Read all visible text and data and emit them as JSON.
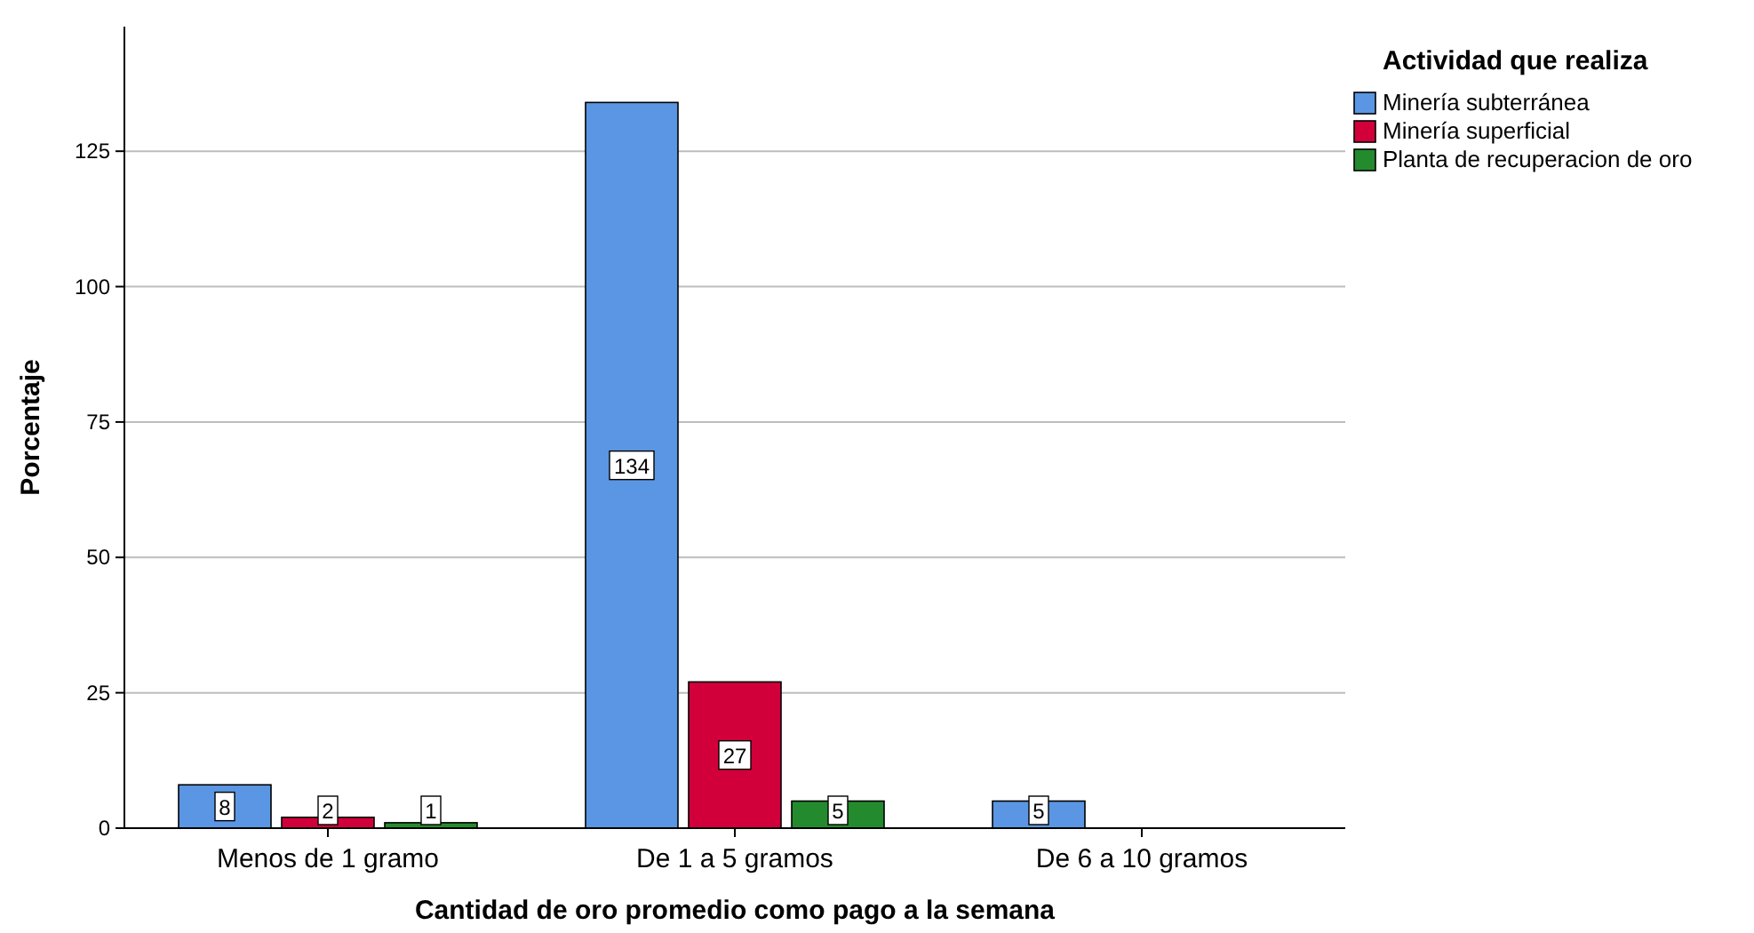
{
  "chart_data": {
    "type": "bar",
    "xlabel": "Cantidad de oro promedio como pago a la semana",
    "ylabel": "Porcentaje",
    "legend_title": "Actividad que realiza",
    "categories": [
      "Menos de 1 gramo",
      "De 1 a 5 gramos",
      "De 6 a 10 gramos"
    ],
    "series": [
      {
        "name": "Minería subterránea",
        "color": "#5a96e3",
        "values": [
          8,
          134,
          5
        ]
      },
      {
        "name": "Minería superficial",
        "color": "#d2003a",
        "values": [
          2,
          27,
          null
        ]
      },
      {
        "name": "Planta de recuperacion de oro",
        "color": "#238b2d",
        "values": [
          1,
          5,
          null
        ]
      }
    ],
    "ylim": [
      0,
      148
    ],
    "yticks": [
      0,
      25,
      50,
      75,
      100,
      125
    ],
    "grid": "y",
    "legend": "top right",
    "data_labels": true
  }
}
